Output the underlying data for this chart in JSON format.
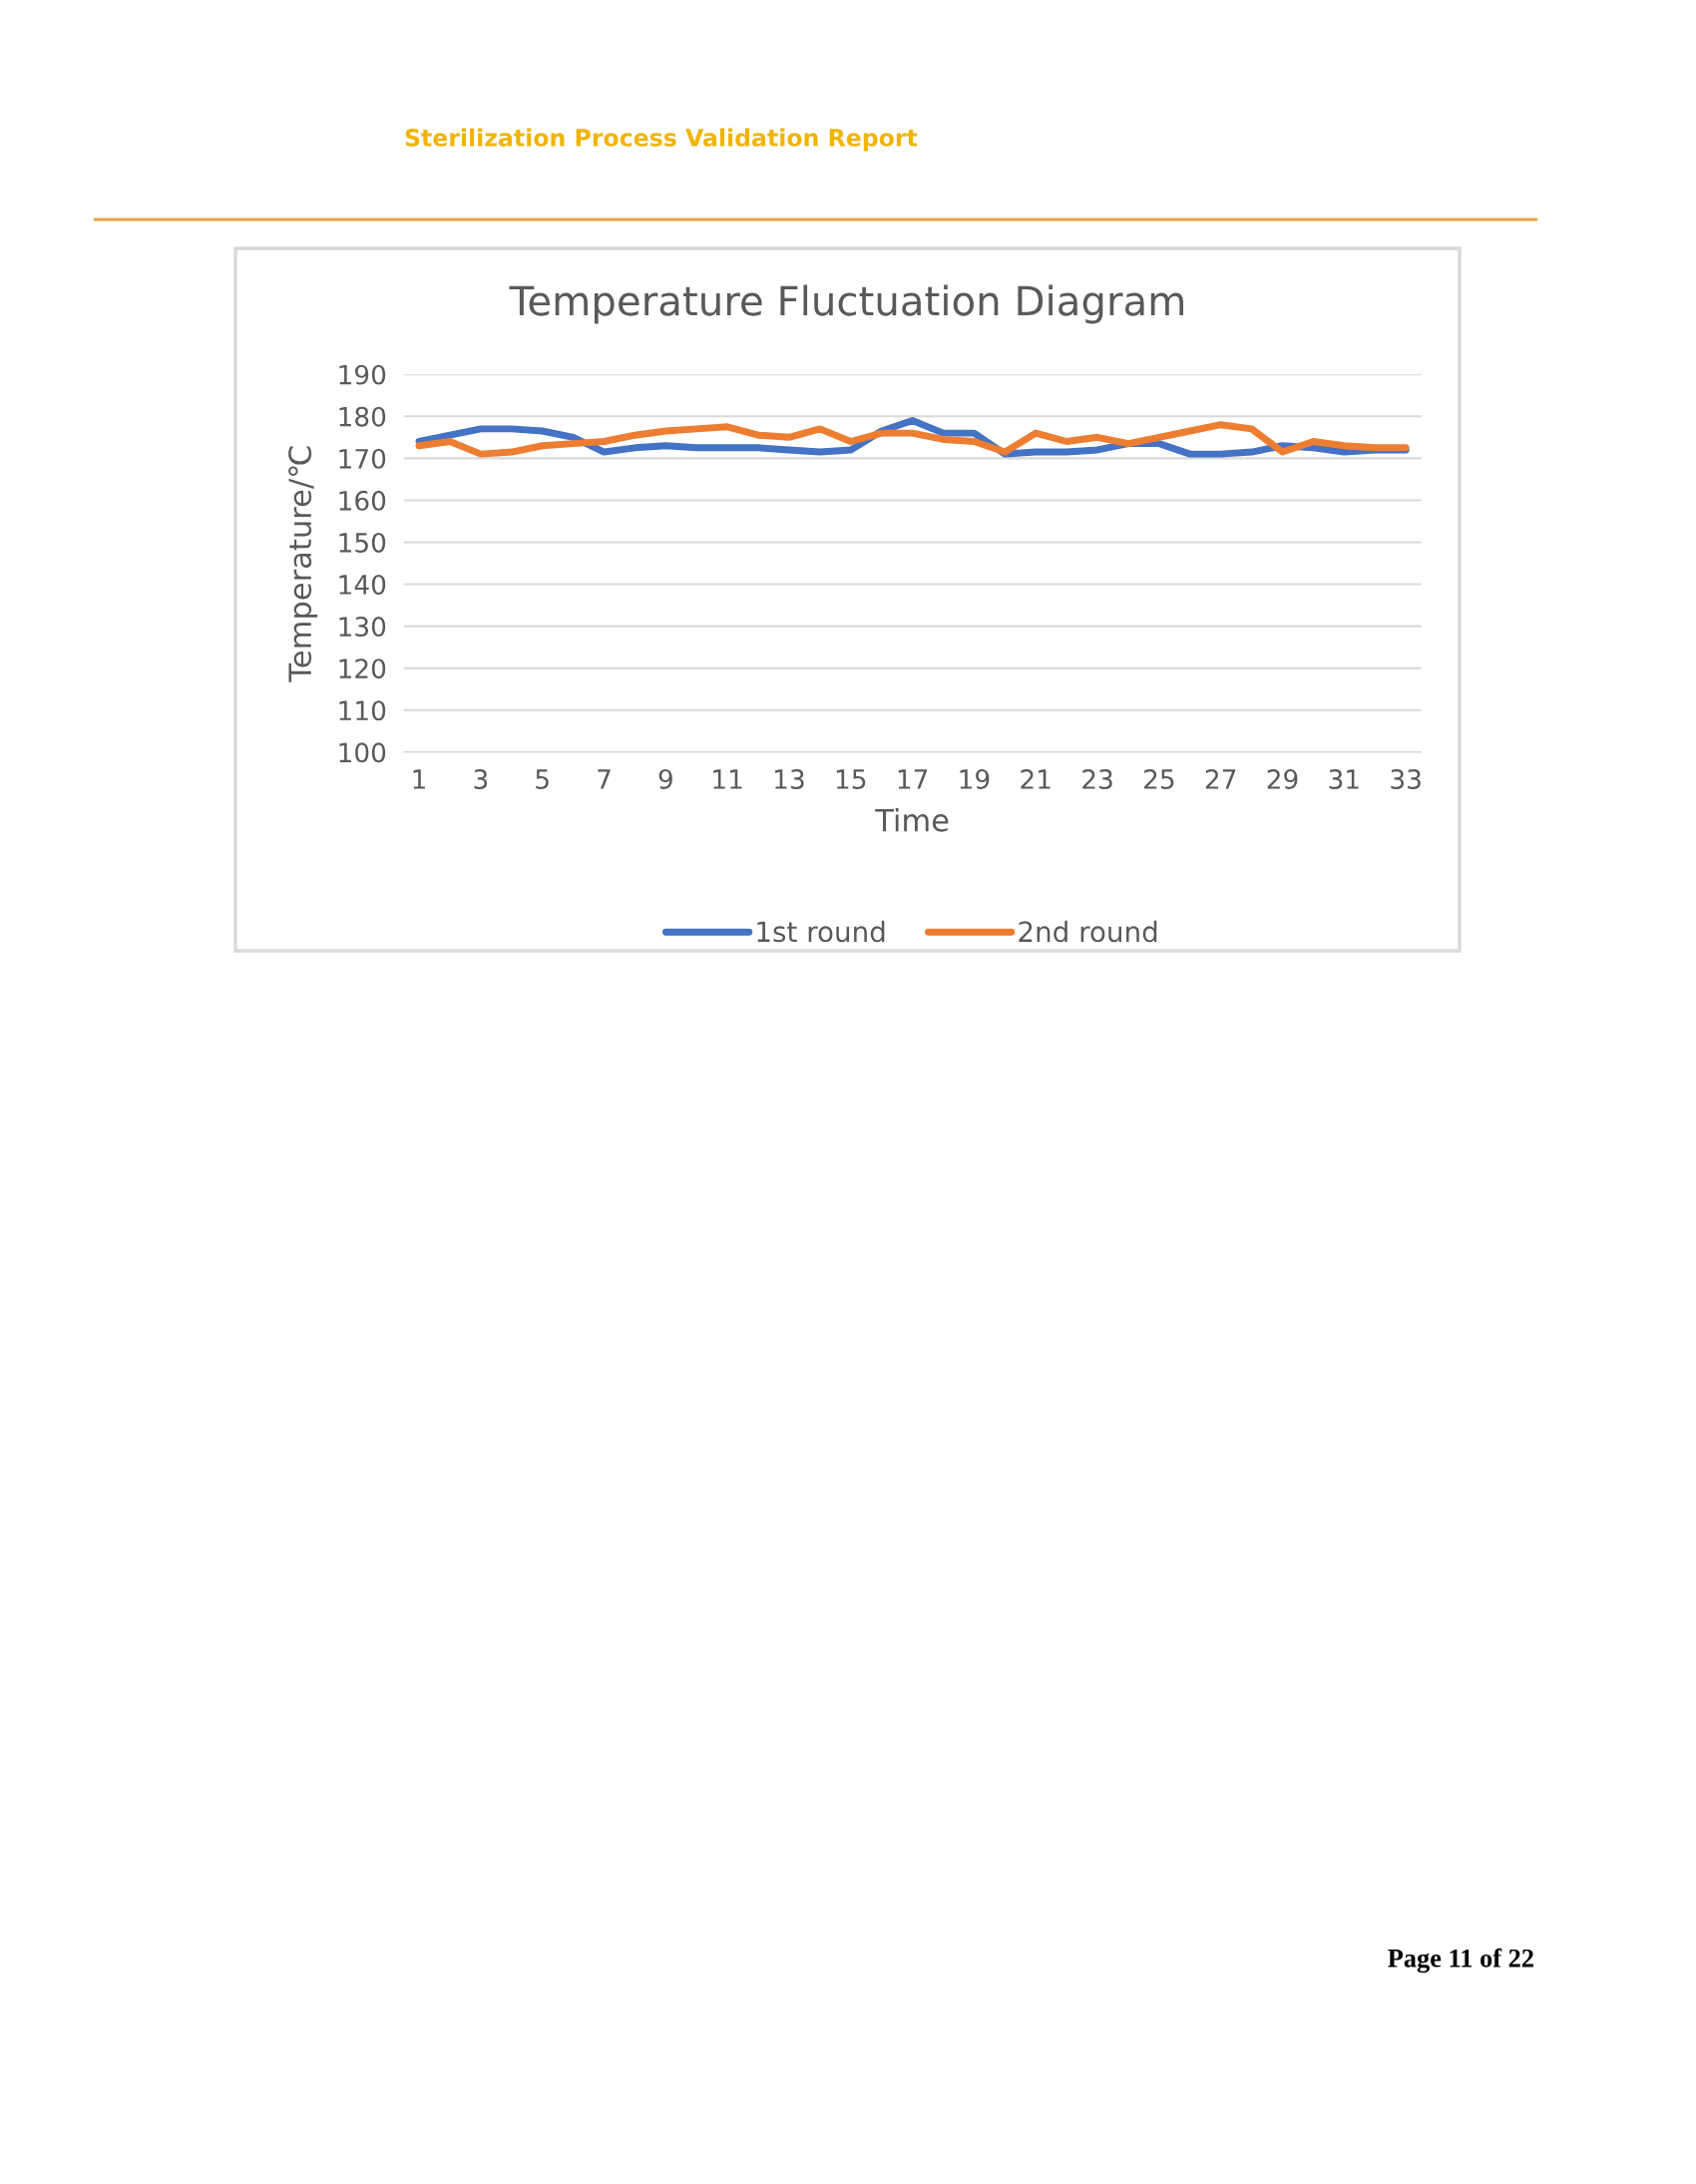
{
  "chart_data": {
    "type": "line",
    "title": "Temperature Fluctuation Diagram",
    "xlabel": "Time",
    "ylabel": "Temperature/℃",
    "annotations": [
      "Sterilization Process Validation Report",
      "Page 11 of 22"
    ],
    "x": [
      1,
      2,
      3,
      4,
      5,
      6,
      7,
      8,
      9,
      10,
      11,
      12,
      13,
      14,
      15,
      16,
      17,
      18,
      19,
      20,
      21,
      22,
      23,
      24,
      25,
      26,
      27,
      28,
      29,
      30,
      31,
      32,
      33
    ],
    "series": [
      {
        "name": "1st round",
        "color": "#4472c4",
        "values": [
          174,
          175.5,
          177,
          177,
          176.5,
          175,
          171.5,
          172.5,
          173,
          172.5,
          172.5,
          172.5,
          172,
          171.5,
          172,
          176.5,
          179,
          176,
          176,
          171,
          171.5,
          171.5,
          172,
          173.5,
          173.5,
          171,
          171,
          171.5,
          173,
          172.5,
          171.5,
          172,
          172
        ]
      },
      {
        "name": "2nd round",
        "color": "#ed7d31",
        "values": [
          173,
          174,
          171,
          171.5,
          173,
          173.5,
          174,
          175.5,
          176.5,
          177,
          177.5,
          175.5,
          175,
          177,
          174,
          176,
          176,
          174.5,
          174,
          171.5,
          176,
          174,
          175,
          173.5,
          175,
          176.5,
          178,
          177,
          171.5,
          174,
          173,
          172.5,
          172.5
        ]
      }
    ],
    "xlim": [
      0.5,
      33.5
    ],
    "xticks": [
      1,
      3,
      5,
      7,
      9,
      11,
      13,
      15,
      17,
      19,
      21,
      23,
      25,
      27,
      29,
      31,
      33
    ],
    "ylim": [
      100,
      190
    ],
    "yticks": [
      100,
      110,
      120,
      130,
      140,
      150,
      160,
      170,
      180,
      190
    ],
    "grid": "y",
    "legend": "bottom",
    "marker": "none",
    "line_style": "solid"
  }
}
